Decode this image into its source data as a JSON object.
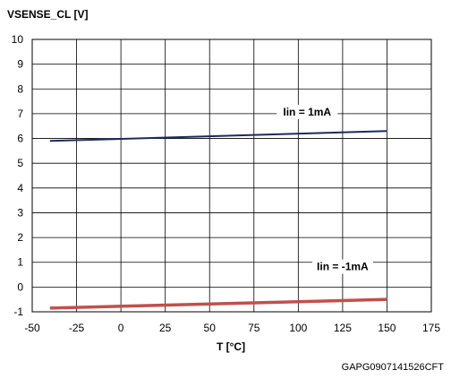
{
  "chart_data": {
    "type": "line",
    "title": "VSENSE_CL [V]",
    "xlabel": "T [°C]",
    "ylabel": "VSENSE_CL [V]",
    "xlim": [
      -50,
      175
    ],
    "ylim": [
      -1,
      10
    ],
    "xticks": [
      -50,
      -25,
      0,
      25,
      50,
      75,
      100,
      125,
      150,
      175
    ],
    "yticks": [
      -1,
      0,
      1,
      2,
      3,
      4,
      5,
      6,
      7,
      8,
      9,
      10
    ],
    "grid": true,
    "series": [
      {
        "name": "Iin = 1mA",
        "color": "#1f2a5e",
        "x": [
          -40,
          150
        ],
        "y": [
          5.9,
          6.3
        ]
      },
      {
        "name": "Iin = -1mA",
        "color": "#c0504d",
        "x": [
          -40,
          150
        ],
        "y": [
          -0.85,
          -0.5
        ]
      }
    ],
    "source_code": "GAPG0907141526CFT"
  }
}
